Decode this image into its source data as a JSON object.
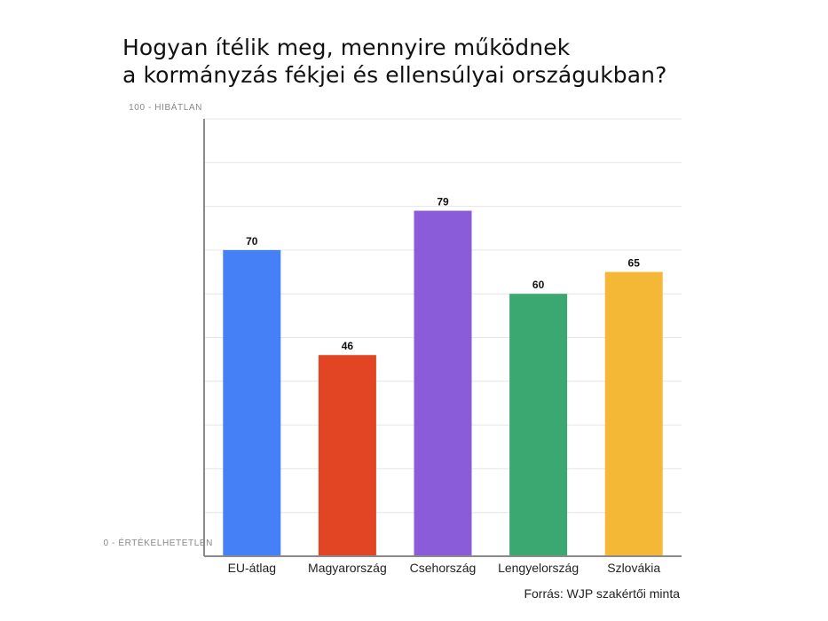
{
  "title_lines": [
    "Hogyan ítélik meg, mennyire működnek",
    "a kormányzás fékjei és ellensúlyai országukban?"
  ],
  "source": "Forrás: WJP szakértői minta",
  "chart_data": {
    "type": "bar",
    "categories": [
      "EU-átlag",
      "Magyarország",
      "Csehország",
      "Lengyelország",
      "Szlovákia"
    ],
    "values": [
      70,
      46,
      79,
      60,
      65
    ],
    "colors": [
      "#4680f7",
      "#e24523",
      "#8b5cd9",
      "#3aa870",
      "#f4b736"
    ],
    "ylim": [
      0,
      100
    ],
    "ytick_labels": {
      "top": "100 - HIBÁTLAN",
      "bottom": "0 - ÉRTÉKELHETETLEN"
    },
    "grid": true,
    "data_labels": true
  }
}
